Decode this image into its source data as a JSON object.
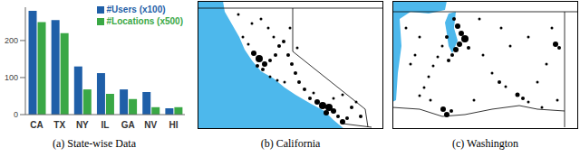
{
  "chart_data": {
    "type": "bar",
    "title": "(a) State-wise Data",
    "categories": [
      "CA",
      "TX",
      "NY",
      "IL",
      "GA",
      "NV",
      "HI"
    ],
    "series": [
      {
        "name": "#Users (x100)",
        "color": "#1f5fa8",
        "values": [
          280,
          255,
          130,
          112,
          68,
          61,
          17
        ]
      },
      {
        "name": "#Locations (x500)",
        "color": "#3aa845",
        "values": [
          250,
          220,
          68,
          56,
          42,
          20,
          20
        ]
      }
    ],
    "ylim": [
      0,
      290
    ],
    "yticks": [
      0,
      100,
      200
    ],
    "grid": false,
    "legend": "top right"
  },
  "panels": [
    {
      "type": "map",
      "title": "(b) California"
    },
    {
      "type": "map",
      "title": "(c) Washington"
    }
  ]
}
